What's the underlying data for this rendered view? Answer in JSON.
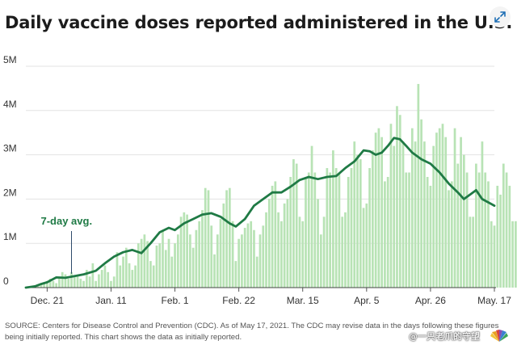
{
  "title": "Daily vaccine doses reported administered in the U.S.",
  "source": "SOURCE: Centers for Disease Control and Prevention (CDC). As of May 17, 2021. The CDC may revise data in the days following these figures being initially reported. This chart shows the data as initially reported.",
  "watermark": "@一只老爪的守望",
  "colors": {
    "bar": "#b8e3b5",
    "avg_line": "#1f7a45",
    "grid": "#e3e3e3",
    "text": "#222222"
  },
  "icons": {
    "expand": "expand-arrows-icon",
    "logo": "cnbc-peacock-icon"
  },
  "chart_data": {
    "type": "bar",
    "title": "Daily vaccine doses reported administered in the U.S.",
    "x_start": "2020-12-14",
    "x_end": "2021-05-17",
    "x_ticks": [
      {
        "date": "2020-12-21",
        "label": "Dec. 21"
      },
      {
        "date": "2021-01-11",
        "label": "Jan. 11"
      },
      {
        "date": "2021-02-01",
        "label": "Feb. 1"
      },
      {
        "date": "2021-02-22",
        "label": "Feb. 22"
      },
      {
        "date": "2021-03-15",
        "label": "Mar. 15"
      },
      {
        "date": "2021-04-05",
        "label": "Apr. 5"
      },
      {
        "date": "2021-04-26",
        "label": "Apr. 26"
      },
      {
        "date": "2021-05-17",
        "label": "May. 17"
      }
    ],
    "ylim": [
      0,
      5000000
    ],
    "y_ticks": [
      {
        "value": 0,
        "label": "0"
      },
      {
        "value": 1000000,
        "label": "1M"
      },
      {
        "value": 2000000,
        "label": "2M"
      },
      {
        "value": 3000000,
        "label": "3M"
      },
      {
        "value": 4000000,
        "label": "4M"
      },
      {
        "value": 5000000,
        "label": "5M"
      }
    ],
    "grid": true,
    "daily_doses": [
      20000,
      25000,
      30000,
      35000,
      50000,
      80000,
      100000,
      150000,
      200000,
      150000,
      100000,
      250000,
      350000,
      300000,
      200000,
      350000,
      250000,
      250000,
      200000,
      150000,
      400000,
      250000,
      550000,
      150000,
      300000,
      400000,
      500000,
      350000,
      150000,
      250000,
      800000,
      500000,
      700000,
      900000,
      550000,
      400000,
      500000,
      1000000,
      1100000,
      1200000,
      1050000,
      600000,
      500000,
      950000,
      1000000,
      1300000,
      850000,
      1100000,
      700000,
      1000000,
      1200000,
      1600000,
      1700000,
      1650000,
      1200000,
      900000,
      1300000,
      1500000,
      1750000,
      2250000,
      2200000,
      1400000,
      750000,
      1200000,
      1550000,
      1900000,
      2200000,
      2250000,
      1500000,
      600000,
      1100000,
      1200000,
      1350000,
      1450000,
      1500000,
      1300000,
      700000,
      1200000,
      1400000,
      1700000,
      2000000,
      2300000,
      2400000,
      1700000,
      1500000,
      1900000,
      2000000,
      2500000,
      2900000,
      2800000,
      1600000,
      1500000,
      2500000,
      2600000,
      3200000,
      2600000,
      2000000,
      1200000,
      1600000,
      2700000,
      2600000,
      3100000,
      2700000,
      2600000,
      1600000,
      1700000,
      2500000,
      2700000,
      3300000,
      3000000,
      2900000,
      1800000,
      1900000,
      2700000,
      3100000,
      3500000,
      3600000,
      3400000,
      2400000,
      2500000,
      3700000,
      3200000,
      4100000,
      3900000,
      3300000,
      2600000,
      2600000,
      3600000,
      3300000,
      4600000,
      3800000,
      3300000,
      2500000,
      2300000,
      3200000,
      3500000,
      3600000,
      3700000,
      3400000,
      2200000,
      2400000,
      3600000,
      2800000,
      3400000,
      3000000,
      2600000,
      1600000,
      1600000,
      2800000,
      2600000,
      3300000,
      2600000,
      2400000,
      1500000,
      1400000,
      2300000,
      2100000,
      2800000,
      2600000,
      2300000,
      1500000,
      1500000,
      2100000,
      2400000,
      2200000,
      2000000,
      1700000
    ],
    "seven_day_avg": [
      {
        "date": "2020-12-14",
        "value": 0
      },
      {
        "date": "2020-12-17",
        "value": 30000
      },
      {
        "date": "2020-12-19",
        "value": 80000
      },
      {
        "date": "2020-12-21",
        "value": 120000
      },
      {
        "date": "2020-12-24",
        "value": 230000
      },
      {
        "date": "2020-12-27",
        "value": 220000
      },
      {
        "date": "2020-12-30",
        "value": 260000
      },
      {
        "date": "2021-01-02",
        "value": 300000
      },
      {
        "date": "2021-01-06",
        "value": 380000
      },
      {
        "date": "2021-01-09",
        "value": 550000
      },
      {
        "date": "2021-01-12",
        "value": 700000
      },
      {
        "date": "2021-01-15",
        "value": 800000
      },
      {
        "date": "2021-01-18",
        "value": 850000
      },
      {
        "date": "2021-01-21",
        "value": 780000
      },
      {
        "date": "2021-01-24",
        "value": 1000000
      },
      {
        "date": "2021-01-27",
        "value": 1250000
      },
      {
        "date": "2021-01-30",
        "value": 1350000
      },
      {
        "date": "2021-02-01",
        "value": 1300000
      },
      {
        "date": "2021-02-04",
        "value": 1450000
      },
      {
        "date": "2021-02-07",
        "value": 1550000
      },
      {
        "date": "2021-02-10",
        "value": 1650000
      },
      {
        "date": "2021-02-13",
        "value": 1680000
      },
      {
        "date": "2021-02-16",
        "value": 1600000
      },
      {
        "date": "2021-02-19",
        "value": 1450000
      },
      {
        "date": "2021-02-21",
        "value": 1380000
      },
      {
        "date": "2021-02-24",
        "value": 1550000
      },
      {
        "date": "2021-02-27",
        "value": 1850000
      },
      {
        "date": "2021-03-02",
        "value": 2000000
      },
      {
        "date": "2021-03-05",
        "value": 2150000
      },
      {
        "date": "2021-03-08",
        "value": 2150000
      },
      {
        "date": "2021-03-11",
        "value": 2280000
      },
      {
        "date": "2021-03-14",
        "value": 2430000
      },
      {
        "date": "2021-03-17",
        "value": 2500000
      },
      {
        "date": "2021-03-20",
        "value": 2450000
      },
      {
        "date": "2021-03-23",
        "value": 2500000
      },
      {
        "date": "2021-03-26",
        "value": 2520000
      },
      {
        "date": "2021-03-29",
        "value": 2700000
      },
      {
        "date": "2021-04-01",
        "value": 2850000
      },
      {
        "date": "2021-04-04",
        "value": 3100000
      },
      {
        "date": "2021-04-06",
        "value": 3080000
      },
      {
        "date": "2021-04-08",
        "value": 3000000
      },
      {
        "date": "2021-04-10",
        "value": 3050000
      },
      {
        "date": "2021-04-12",
        "value": 3200000
      },
      {
        "date": "2021-04-14",
        "value": 3380000
      },
      {
        "date": "2021-04-16",
        "value": 3350000
      },
      {
        "date": "2021-04-18",
        "value": 3200000
      },
      {
        "date": "2021-04-20",
        "value": 3050000
      },
      {
        "date": "2021-04-23",
        "value": 2900000
      },
      {
        "date": "2021-04-26",
        "value": 2800000
      },
      {
        "date": "2021-04-29",
        "value": 2600000
      },
      {
        "date": "2021-05-02",
        "value": 2350000
      },
      {
        "date": "2021-05-05",
        "value": 2150000
      },
      {
        "date": "2021-05-07",
        "value": 2000000
      },
      {
        "date": "2021-05-09",
        "value": 2100000
      },
      {
        "date": "2021-05-11",
        "value": 2200000
      },
      {
        "date": "2021-05-13",
        "value": 2000000
      },
      {
        "date": "2021-05-17",
        "value": 1850000
      }
    ],
    "annotation": {
      "text": "7-day avg.",
      "date": "2020-12-29",
      "value": 240000
    }
  }
}
